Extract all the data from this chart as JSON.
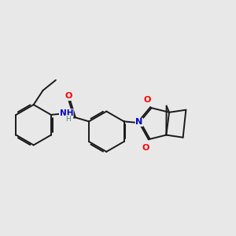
{
  "bg_color": "#e8e8e8",
  "bond_color": "#1a1a1a",
  "bond_width": 1.4,
  "dbo": 0.06,
  "atom_colors": {
    "O": "#ff0000",
    "N": "#0000cc",
    "H": "#4a8a8a"
  },
  "figsize": [
    3.0,
    3.0
  ],
  "dpi": 100
}
